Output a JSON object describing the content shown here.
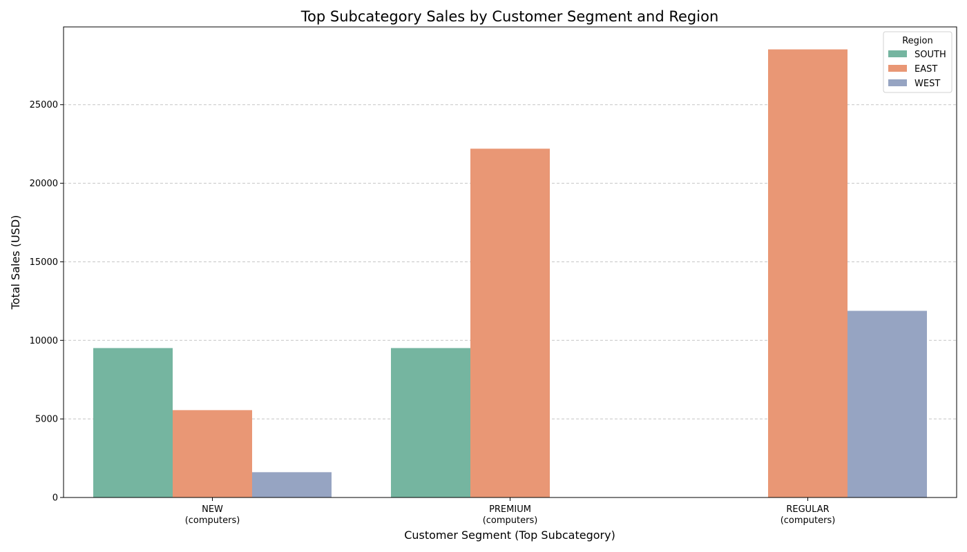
{
  "chart_data": {
    "type": "bar",
    "title": "Top Subcategory Sales by Customer Segment and Region",
    "xlabel": "Customer Segment (Top Subcategory)",
    "ylabel": "Total Sales (USD)",
    "categories": [
      [
        "NEW",
        "(computers)"
      ],
      [
        "PREMIUM",
        "(computers)"
      ],
      [
        "REGULAR",
        "(computers)"
      ]
    ],
    "series": [
      {
        "name": "SOUTH",
        "color": "#75b5a0",
        "values": [
          9510,
          9510,
          null
        ]
      },
      {
        "name": "EAST",
        "color": "#e99775",
        "values": [
          5560,
          22200,
          28520
        ]
      },
      {
        "name": "WEST",
        "color": "#96a4c2",
        "values": [
          1610,
          null,
          11880
        ]
      }
    ],
    "ylim": [
      0,
      30000
    ],
    "yticks": [
      0,
      5000,
      10000,
      15000,
      20000,
      25000
    ],
    "grid": true,
    "legend": {
      "title": "Region",
      "placement": "top-right"
    }
  }
}
